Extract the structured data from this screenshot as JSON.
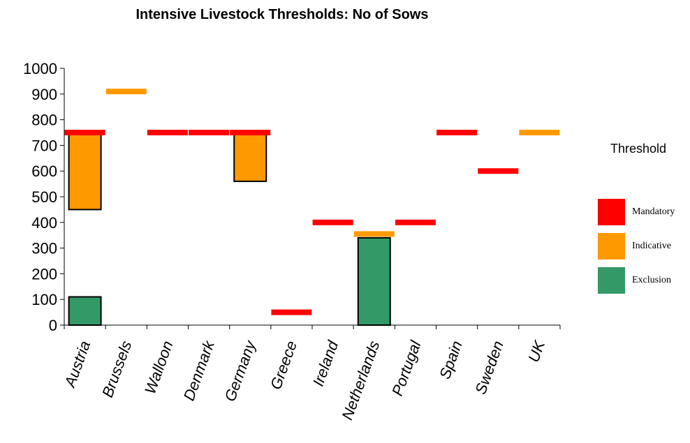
{
  "chart_data": {
    "type": "bar",
    "title": "Intensive Livestock Thresholds: No of Sows",
    "xlabel": "",
    "ylabel": "",
    "ylim": [
      0,
      1000
    ],
    "yticks": [
      0,
      100,
      200,
      300,
      400,
      500,
      600,
      700,
      800,
      900,
      1000
    ],
    "categories": [
      "Austria",
      "Brussels",
      "Walloon",
      "Denmark",
      "Germany",
      "Greece",
      "Ireland",
      "Netherlands",
      "Portugal",
      "Spain",
      "Sweden",
      "UK"
    ],
    "legend": {
      "title": "Threshold",
      "placement": "right",
      "entries": [
        {
          "name": "Mandatory",
          "color": "#ff0000"
        },
        {
          "name": "Indicative",
          "color": "#ff9900"
        },
        {
          "name": "Exclusion",
          "color": "#339966"
        }
      ]
    },
    "series": [
      {
        "name": "Mandatory",
        "color": "#ff0000",
        "kind": "marker",
        "values": [
          750,
          null,
          750,
          750,
          750,
          50,
          400,
          null,
          400,
          750,
          600,
          null
        ]
      },
      {
        "name": "Indicative",
        "color": "#ff9900",
        "kind": "range",
        "ranges": [
          [
            450,
            750
          ],
          null,
          null,
          null,
          [
            560,
            750
          ],
          null,
          null,
          null,
          null,
          null,
          null,
          null
        ]
      },
      {
        "name": "Indicative",
        "color": "#ff9900",
        "kind": "marker",
        "values": [
          null,
          910,
          null,
          null,
          null,
          null,
          null,
          355,
          null,
          null,
          null,
          750
        ]
      },
      {
        "name": "Exclusion",
        "color": "#339966",
        "kind": "range",
        "ranges": [
          [
            0,
            110
          ],
          null,
          null,
          null,
          null,
          null,
          null,
          [
            0,
            340
          ],
          null,
          null,
          null,
          null
        ]
      }
    ]
  }
}
